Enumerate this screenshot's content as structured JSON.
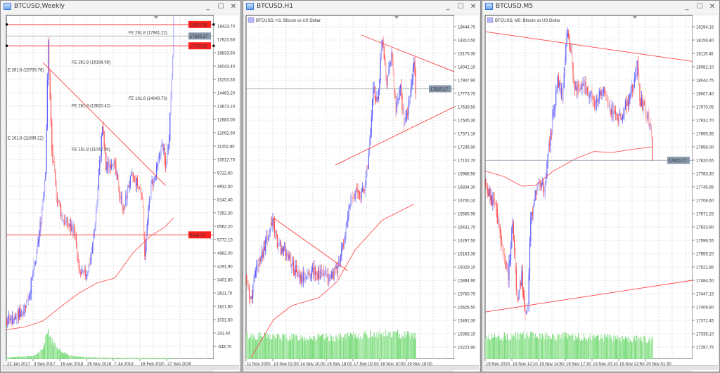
{
  "colors": {
    "bull": "#5a5aff",
    "bull_light": "#a8a8ff",
    "bear": "#ff4d4d",
    "bear_light": "#ffa8a8",
    "line": "#ff4040",
    "volume": "#7edc7e",
    "grid": "#c9c9c9",
    "label_red": "#ff1f1f",
    "label_gray": "#8696a8"
  },
  "windows": [
    {
      "title": "BTCUSD,Weekly",
      "subtitle": "",
      "min_label": "_",
      "max_label": "☐",
      "close_label": "✕",
      "ticks": [
        "16833.50",
        "16043.40",
        "15253.30",
        "14463.20",
        "13673.10",
        "12883.00",
        "12092.90",
        "11302.80",
        "10512.70",
        "9722.60",
        "8932.50",
        "8142.40",
        "7352.30",
        "6562.20",
        "5772.10",
        "4982.00",
        "4191.90",
        "3401.80",
        "2611.70",
        "1821.60",
        "1031.50",
        "241.40",
        "-548.70"
      ],
      "hidden_ticks": [
        "18423.70",
        "17623.60"
      ],
      "dates": [
        "22 Jan 2017",
        "3 Sep 2017",
        "15 Apr 2018",
        "25 Nov 2018",
        "7 Jul 2019",
        "16 Feb 2020",
        "27 Sep 2020"
      ],
      "price_labels": [
        {
          "text": "18502.90",
          "value": 18502.9,
          "kind": "red"
        },
        {
          "text": "17820.17",
          "value": 17820.17,
          "kind": "gray"
        },
        {
          "text": "17240.82",
          "value": 17240.82,
          "kind": "red"
        },
        {
          "text": "6048.70",
          "value": 6048.7,
          "kind": "red"
        }
      ],
      "fe_labels": [
        {
          "text": "FE 261.8 (17941.22)",
          "bar": 135,
          "value": 17941.22
        },
        {
          "text": "FE 261.8 (16198.58)",
          "bar": 72,
          "value": 16198.58
        },
        {
          "text": "E 261.8 (15739.78)",
          "bar": 1,
          "value": 15739.78
        },
        {
          "text": "FE 161.8 (14043.73)",
          "bar": 135,
          "value": 14043.73
        },
        {
          "text": "FE 261.8 (13620.42)",
          "bar": 72,
          "value": 13620.42
        },
        {
          "text": "E 161.8 (11699.22)",
          "bar": 1,
          "value": 11699.22
        },
        {
          "text": "FE 161.8 (11042.26)",
          "bar": 72,
          "value": 11042.26
        }
      ],
      "slots": 230,
      "bars": 186,
      "noise": 500,
      "seed": 7,
      "path": [
        [
          0,
          1000
        ],
        [
          10,
          1100
        ],
        [
          20,
          1800
        ],
        [
          25,
          2600
        ],
        [
          32,
          4500
        ],
        [
          38,
          7000
        ],
        [
          43,
          10000
        ],
        [
          46,
          17500
        ],
        [
          48,
          14000
        ],
        [
          50,
          11000
        ],
        [
          55,
          8500
        ],
        [
          62,
          7000
        ],
        [
          70,
          6500
        ],
        [
          75,
          6300
        ],
        [
          80,
          3800
        ],
        [
          85,
          3600
        ],
        [
          90,
          4000
        ],
        [
          95,
          5200
        ],
        [
          100,
          8000
        ],
        [
          104,
          11000
        ],
        [
          106,
          12500
        ],
        [
          110,
          10000
        ],
        [
          118,
          10500
        ],
        [
          125,
          8500
        ],
        [
          130,
          7500
        ],
        [
          135,
          9000
        ],
        [
          140,
          9500
        ],
        [
          150,
          8500
        ],
        [
          153,
          5000
        ],
        [
          156,
          6800
        ],
        [
          160,
          9000
        ],
        [
          165,
          9500
        ],
        [
          170,
          11000
        ],
        [
          173,
          11300
        ],
        [
          176,
          10000
        ],
        [
          180,
          12000
        ],
        [
          183,
          15500
        ],
        [
          185,
          18500
        ]
      ],
      "ma": [
        [
          0,
          430
        ],
        [
          20,
          600
        ],
        [
          40,
          950
        ],
        [
          60,
          1800
        ],
        [
          80,
          2600
        ],
        [
          100,
          3200
        ],
        [
          120,
          3500
        ],
        [
          140,
          5000
        ],
        [
          160,
          6000
        ],
        [
          175,
          6500
        ],
        [
          185,
          7060
        ]
      ],
      "trendlines": [
        [
          [
            40,
            16251
          ],
          [
            176,
            8974
          ]
        ]
      ],
      "volume": [
        [
          0,
          0.05
        ],
        [
          30,
          0.1
        ],
        [
          40,
          0.3
        ],
        [
          45,
          1.0
        ],
        [
          50,
          0.6
        ],
        [
          60,
          0.25
        ],
        [
          70,
          0.12
        ],
        [
          80,
          0.08
        ],
        [
          90,
          0.05
        ],
        [
          120,
          0.03
        ],
        [
          185,
          0.03
        ]
      ]
    },
    {
      "title": "BTCUSD,H1",
      "subtitle": "BTCUSD, H1:  Bitcoin vs US Dollar",
      "min_label": "_",
      "max_label": "☐",
      "close_label": "✕",
      "ticks": [
        "18444.70",
        "18310.50",
        "18176.30",
        "18042.10",
        "17907.90",
        "17773.70",
        "17639.50",
        "17505.30",
        "17371.10",
        "17236.90",
        "17102.70",
        "16968.50",
        "16834.30",
        "16700.10",
        "16565.90",
        "16431.70",
        "16297.50",
        "16163.30",
        "16029.10",
        "15894.90",
        "15760.70",
        "15626.50",
        "15492.30",
        "15358.10",
        "15223.90"
      ],
      "hidden_ticks": [],
      "dates": [
        "11 Nov 2020",
        "13 Nov 02:00",
        "14 Nov 10:00",
        "15 Nov 18:00",
        "17 Nov 02:00",
        "18 Nov 10:00",
        "19 Nov 18:00"
      ],
      "price_labels": [
        {
          "text": "17820.17",
          "value": 17820.17,
          "kind": "gray"
        }
      ],
      "fe_labels": [],
      "slots": 230,
      "bars": 188,
      "noise": 90,
      "seed": 13,
      "path": [
        [
          0,
          15900
        ],
        [
          5,
          15700
        ],
        [
          10,
          16000
        ],
        [
          20,
          16200
        ],
        [
          28,
          16500
        ],
        [
          35,
          16250
        ],
        [
          45,
          16150
        ],
        [
          60,
          15900
        ],
        [
          75,
          16000
        ],
        [
          90,
          15900
        ],
        [
          100,
          16000
        ],
        [
          108,
          16300
        ],
        [
          115,
          16700
        ],
        [
          120,
          16800
        ],
        [
          125,
          16750
        ],
        [
          130,
          16800
        ],
        [
          135,
          17150
        ],
        [
          140,
          17800
        ],
        [
          145,
          17700
        ],
        [
          150,
          18350
        ],
        [
          155,
          17900
        ],
        [
          160,
          18200
        ],
        [
          165,
          17600
        ],
        [
          170,
          17800
        ],
        [
          175,
          17450
        ],
        [
          180,
          17700
        ],
        [
          185,
          18100
        ],
        [
          187,
          17820
        ]
      ],
      "ma": [
        [
          5,
          15120
        ],
        [
          30,
          15500
        ],
        [
          50,
          15640
        ],
        [
          80,
          15720
        ],
        [
          100,
          15880
        ],
        [
          120,
          16200
        ],
        [
          150,
          16500
        ],
        [
          185,
          16660
        ]
      ],
      "trendlines": [
        [
          [
            127,
            18360
          ],
          [
            230,
            17992
          ]
        ],
        [
          [
            98,
            17053
          ],
          [
            230,
            17639
          ]
        ],
        [
          [
            30,
            16520
          ],
          [
            112,
            15990
          ]
        ]
      ],
      "volume": [
        [
          0,
          0.85
        ],
        [
          40,
          0.8
        ],
        [
          100,
          0.78
        ],
        [
          140,
          0.92
        ],
        [
          187,
          0.9
        ]
      ]
    },
    {
      "title": "BTCUSD,M5",
      "subtitle": "BTCUSD, M5:  Bitcoin vs US Dollar",
      "min_label": "_",
      "max_label": "☐",
      "close_label": "✕",
      "ticks": [
        "18194.15",
        "18156.80",
        "18119.45",
        "18082.10",
        "18044.75",
        "18007.40",
        "17970.05",
        "17932.70",
        "17895.35",
        "17858.00",
        "17820.65",
        "17783.30",
        "17745.95",
        "17708.60",
        "17671.25",
        "17633.90",
        "17596.55",
        "17559.20",
        "17521.85",
        "17484.50",
        "17447.15",
        "17409.80",
        "17372.45",
        "17335.10",
        "17297.75"
      ],
      "hidden_ticks": [],
      "dates": [
        "19 Nov 2020",
        "19 Nov 12:10",
        "19 Nov 14:50",
        "19 Nov 17:30",
        "19 Nov 20:10",
        "19 Nov 22:50",
        "20 Nov 01:30"
      ],
      "price_labels": [
        {
          "text": "17820.17",
          "value": 17820.17,
          "kind": "gray"
        }
      ],
      "fe_labels": [],
      "slots": 230,
      "bars": 186,
      "noise": 28,
      "seed": 29,
      "path": [
        [
          0,
          17760
        ],
        [
          5,
          17720
        ],
        [
          10,
          17700
        ],
        [
          15,
          17620
        ],
        [
          20,
          17560
        ],
        [
          25,
          17500
        ],
        [
          30,
          17650
        ],
        [
          35,
          17430
        ],
        [
          40,
          17500
        ],
        [
          43,
          17390
        ],
        [
          47,
          17430
        ],
        [
          50,
          17650
        ],
        [
          55,
          17720
        ],
        [
          60,
          17760
        ],
        [
          65,
          17740
        ],
        [
          70,
          17850
        ],
        [
          75,
          17950
        ],
        [
          80,
          18050
        ],
        [
          85,
          18000
        ],
        [
          90,
          18170
        ],
        [
          95,
          18110
        ],
        [
          100,
          18010
        ],
        [
          110,
          18030
        ],
        [
          120,
          17980
        ],
        [
          130,
          18020
        ],
        [
          140,
          17960
        ],
        [
          150,
          17940
        ],
        [
          160,
          18000
        ],
        [
          168,
          18080
        ],
        [
          172,
          17980
        ],
        [
          180,
          17940
        ],
        [
          184,
          17900
        ],
        [
          185,
          17820
        ]
      ],
      "ma": [
        [
          0,
          17790
        ],
        [
          20,
          17775
        ],
        [
          40,
          17748
        ],
        [
          55,
          17750
        ],
        [
          75,
          17790
        ],
        [
          100,
          17825
        ],
        [
          120,
          17845
        ],
        [
          140,
          17842
        ],
        [
          160,
          17850
        ],
        [
          185,
          17858
        ]
      ],
      "trendlines": [
        [
          [
            0,
            18180
          ],
          [
            230,
            18097
          ]
        ],
        [
          [
            0,
            17396
          ],
          [
            230,
            17484.5
          ]
        ]
      ],
      "volume": [
        [
          0,
          0.8
        ],
        [
          40,
          0.85
        ],
        [
          100,
          0.82
        ],
        [
          150,
          0.75
        ],
        [
          185,
          0.7
        ]
      ]
    }
  ]
}
